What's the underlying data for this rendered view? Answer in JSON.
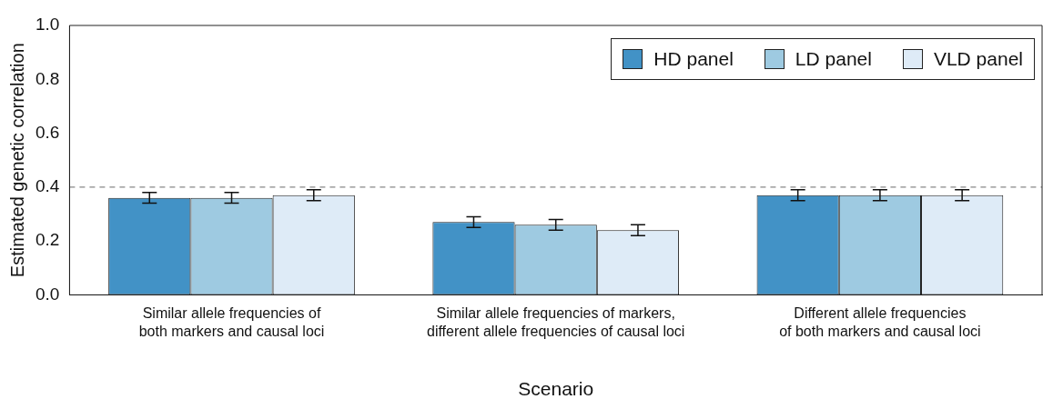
{
  "chart_data": {
    "type": "bar",
    "xlabel": "Scenario",
    "ylabel": "Estimated genetic correlation",
    "categories": [
      "Similar allele frequencies of both markers and causal loci",
      "Similar allele frequencies of markers, different allele frequencies of causal loci",
      "Different allele frequencies of both markers and causal loci"
    ],
    "series": [
      {
        "name": "HD panel",
        "color": "#4292c6",
        "values": [
          0.36,
          0.27,
          0.37
        ],
        "errors": [
          0.02,
          0.02,
          0.02
        ]
      },
      {
        "name": "LD panel",
        "color": "#9ecae1",
        "values": [
          0.36,
          0.26,
          0.37
        ],
        "errors": [
          0.02,
          0.02,
          0.02
        ]
      },
      {
        "name": "VLD panel",
        "color": "#deebf7",
        "values": [
          0.37,
          0.24,
          0.37
        ],
        "errors": [
          0.02,
          0.02,
          0.02
        ]
      }
    ],
    "ylim": [
      0,
      1
    ],
    "yticks": [
      {
        "value": 0,
        "label": "0.0"
      },
      {
        "value": 0.2,
        "label": "0.2"
      },
      {
        "value": 0.4,
        "label": "0.4"
      },
      {
        "value": 0.6,
        "label": "0.6"
      },
      {
        "value": 0.8,
        "label": "0.8"
      },
      {
        "value": 1,
        "label": "1.0"
      }
    ],
    "ref_lines": [
      {
        "axis": "y",
        "value": 0.4,
        "color": "#888888",
        "line_style": "dashed"
      }
    ],
    "grid": false,
    "legend": "top right"
  }
}
